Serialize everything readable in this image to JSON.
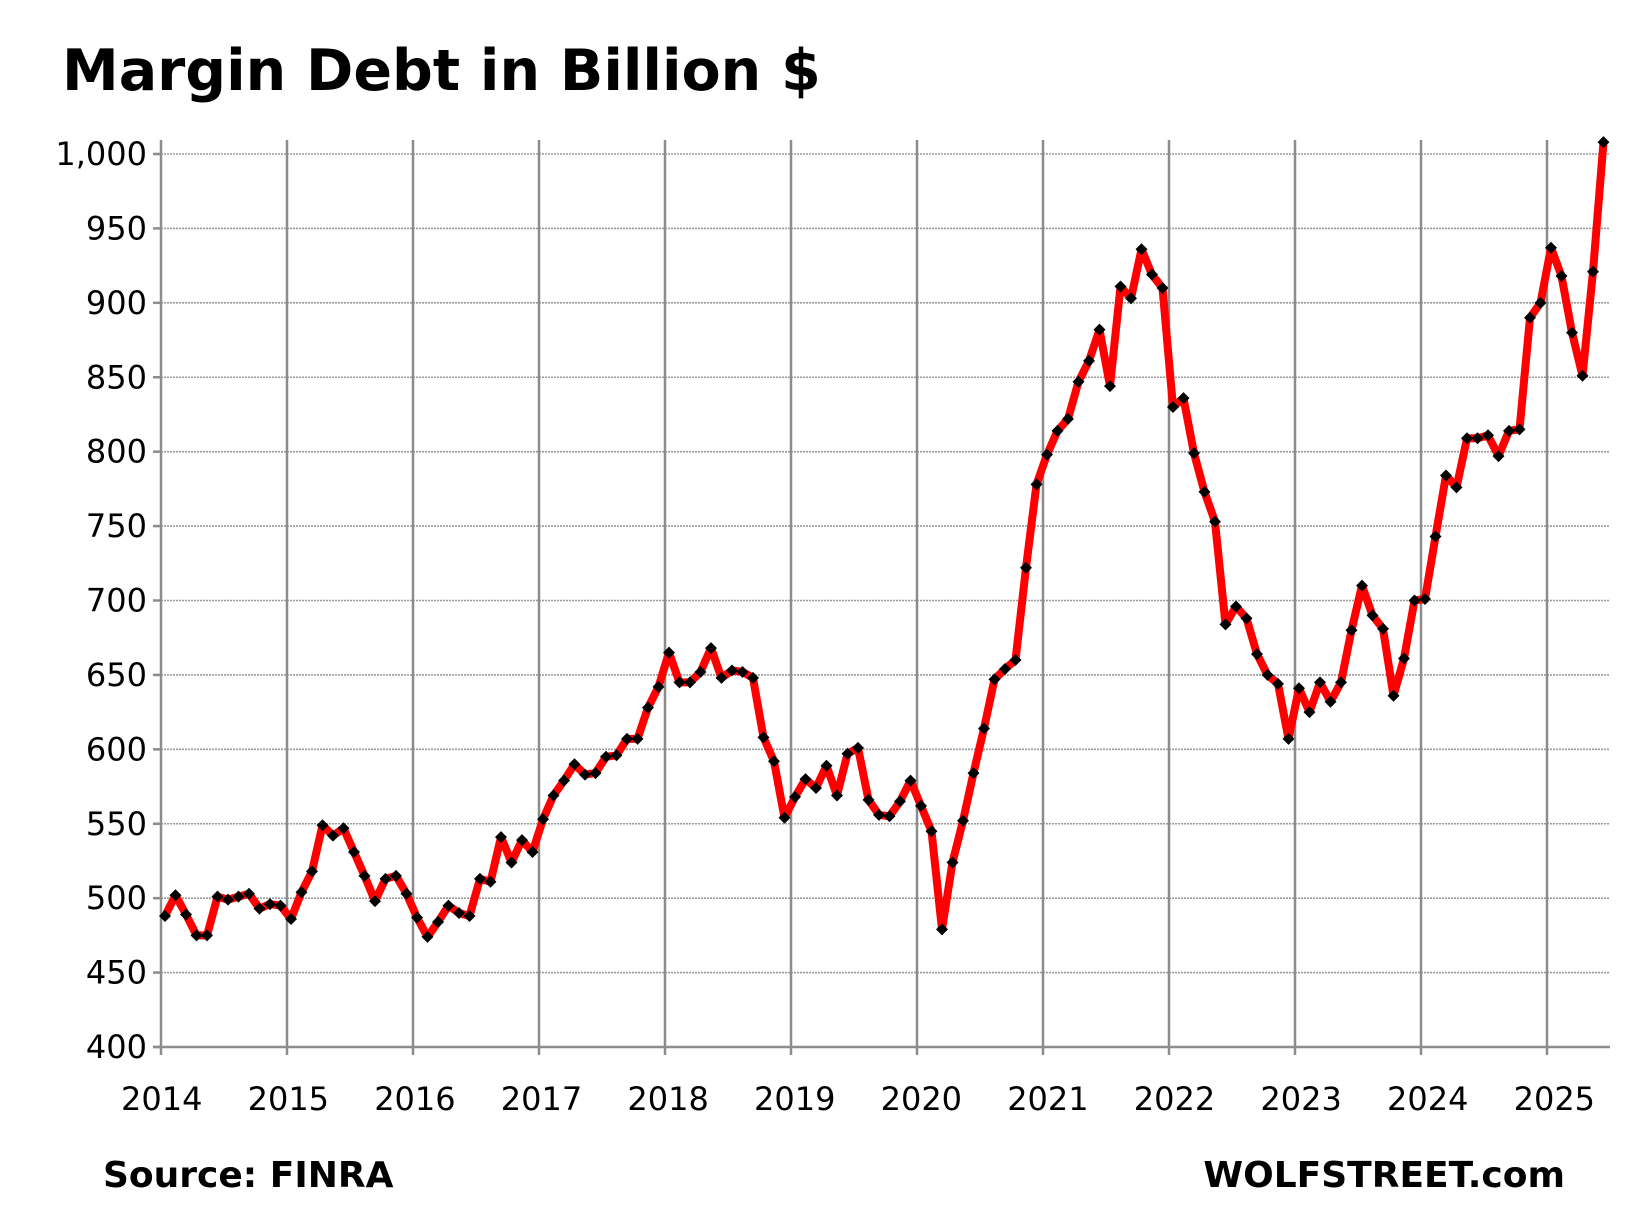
{
  "chart_data": {
    "type": "line",
    "title": "Margin Debt in Billion $",
    "xlabel": "",
    "ylabel": "",
    "ylim": [
      400,
      1000
    ],
    "yticks": [
      "400",
      "450",
      "500",
      "550",
      "600",
      "650",
      "700",
      "750",
      "800",
      "850",
      "900",
      "950",
      "1,000"
    ],
    "ytick_values": [
      400,
      450,
      500,
      550,
      600,
      650,
      700,
      750,
      800,
      850,
      900,
      950,
      1000
    ],
    "xticks": [
      "2014",
      "2015",
      "2016",
      "2017",
      "2018",
      "2019",
      "2020",
      "2021",
      "2022",
      "2023",
      "2024",
      "2025"
    ],
    "x_start": "2014-01",
    "grid": true,
    "legend": "none",
    "series": [
      {
        "color": "#ff0000",
        "marker_color": "#000000",
        "values": [
          488,
          502,
          489,
          475,
          475,
          501,
          499,
          501,
          503,
          493,
          496,
          495,
          486,
          504,
          518,
          549,
          542,
          547,
          531,
          515,
          498,
          513,
          515,
          503,
          487,
          474,
          484,
          495,
          490,
          488,
          513,
          511,
          541,
          524,
          539,
          531,
          553,
          569,
          579,
          590,
          583,
          584,
          595,
          596,
          607,
          607,
          628,
          642,
          665,
          645,
          645,
          652,
          668,
          648,
          653,
          652,
          648,
          608,
          592,
          554,
          568,
          580,
          574,
          589,
          569,
          597,
          601,
          566,
          556,
          555,
          565,
          579,
          562,
          545,
          479,
          524,
          552,
          584,
          614,
          647,
          654,
          660,
          722,
          778,
          798,
          814,
          822,
          847,
          861,
          882,
          844,
          911,
          903,
          936,
          919,
          910,
          830,
          836,
          799,
          773,
          753,
          684,
          696,
          688,
          664,
          650,
          644,
          607,
          641,
          625,
          645,
          632,
          645,
          680,
          710,
          690,
          681,
          636,
          661,
          700,
          701,
          743,
          784,
          776,
          809,
          809,
          811,
          797,
          814,
          815,
          890,
          900,
          937,
          918,
          880,
          851,
          921,
          1008
        ]
      }
    ]
  },
  "footer": {
    "source": "Source: FINRA",
    "watermark": "WOLFSTREET.com"
  }
}
